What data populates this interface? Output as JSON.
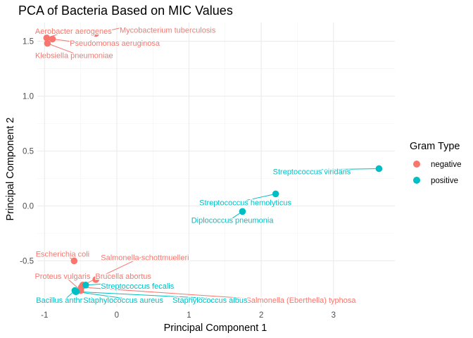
{
  "chart_data": {
    "type": "scatter",
    "title": "PCA of Bacteria Based on MIC Values",
    "xlabel": "Principal Component 1",
    "ylabel": "Principal Component 2",
    "xlim": [
      -1.1,
      3.85
    ],
    "ylim": [
      -0.92,
      1.67
    ],
    "xticks": [
      -1,
      0,
      1,
      2,
      3
    ],
    "yticks": [
      -0.5,
      0.0,
      0.5,
      1.0,
      1.5
    ],
    "ytick_labels": [
      "-0.5",
      "0.0",
      "0.5",
      "1.0",
      "1.5"
    ],
    "grid": true,
    "legend": {
      "title": "Gram Type",
      "placement": "right",
      "entries": [
        {
          "name": "negative",
          "color": "#F8766D"
        },
        {
          "name": "positive",
          "color": "#00BFC4"
        }
      ]
    },
    "colors": {
      "negative": "#F8766D",
      "positive": "#00BFC4"
    },
    "points": [
      {
        "name": "Aerobacter aerogenes",
        "gram": "negative",
        "x": -0.97,
        "y": 1.53,
        "lx": -0.6,
        "ly": 1.59,
        "anchor": "middle"
      },
      {
        "name": "Mycobacterium tuberculosis",
        "gram": "negative",
        "x": -0.29,
        "y": 1.57,
        "lx": 0.04,
        "ly": 1.6,
        "anchor": "start"
      },
      {
        "name": "Pseudomonas aeruginosa",
        "gram": "negative",
        "x": -0.89,
        "y": 1.52,
        "lx": -0.65,
        "ly": 1.48,
        "anchor": "start"
      },
      {
        "name": "Klebsiella pneumoniae",
        "gram": "negative",
        "x": -0.96,
        "y": 1.48,
        "lx": -0.59,
        "ly": 1.37,
        "anchor": "middle"
      },
      {
        "name": "Escherichia coli",
        "gram": "negative",
        "x": -0.59,
        "y": -0.5,
        "lx": -0.75,
        "ly": -0.44,
        "anchor": "middle"
      },
      {
        "name": "Salmonella schottmuelleri",
        "gram": "negative",
        "x": -0.47,
        "y": -0.72,
        "lx": 0.39,
        "ly": -0.47,
        "anchor": "middle"
      },
      {
        "name": "Proteus vulgaris",
        "gram": "negative",
        "x": -0.5,
        "y": -0.77,
        "lx": -0.75,
        "ly": -0.64,
        "anchor": "middle"
      },
      {
        "name": "Brucella abortus",
        "gram": "negative",
        "x": -0.29,
        "y": -0.67,
        "lx": 0.09,
        "ly": -0.64,
        "anchor": "middle"
      },
      {
        "name": "Salmonella (Eberthella) typhosa",
        "gram": "negative",
        "x": -0.49,
        "y": -0.74,
        "lx": 1.79,
        "ly": -0.86,
        "anchor": "start"
      },
      {
        "name": "Streptococcus viridans",
        "gram": "positive",
        "x": 3.63,
        "y": 0.34,
        "lx": 2.7,
        "ly": 0.31,
        "anchor": "middle"
      },
      {
        "name": "Streptococcus hemolyticus",
        "gram": "positive",
        "x": 2.2,
        "y": 0.11,
        "lx": 1.78,
        "ly": 0.03,
        "anchor": "middle"
      },
      {
        "name": "Diplococcus pneumonia",
        "gram": "positive",
        "x": 1.74,
        "y": -0.05,
        "lx": 1.6,
        "ly": -0.13,
        "anchor": "middle"
      },
      {
        "name": "Streptococcus fecalis",
        "gram": "positive",
        "x": -0.43,
        "y": -0.72,
        "lx": -0.22,
        "ly": -0.73,
        "anchor": "start"
      },
      {
        "name": "Bacillus anthracis",
        "gram": "positive",
        "x": -0.58,
        "y": -0.77,
        "lx": -0.7,
        "ly": -0.86,
        "anchor": "middle"
      },
      {
        "name": "Staphylococcus aureus",
        "gram": "positive",
        "x": -0.57,
        "y": -0.78,
        "lx": 0.09,
        "ly": -0.86,
        "anchor": "middle"
      },
      {
        "name": "Staphylococcus albus",
        "gram": "positive",
        "x": -0.56,
        "y": -0.78,
        "lx": 1.29,
        "ly": -0.86,
        "anchor": "middle"
      }
    ]
  }
}
